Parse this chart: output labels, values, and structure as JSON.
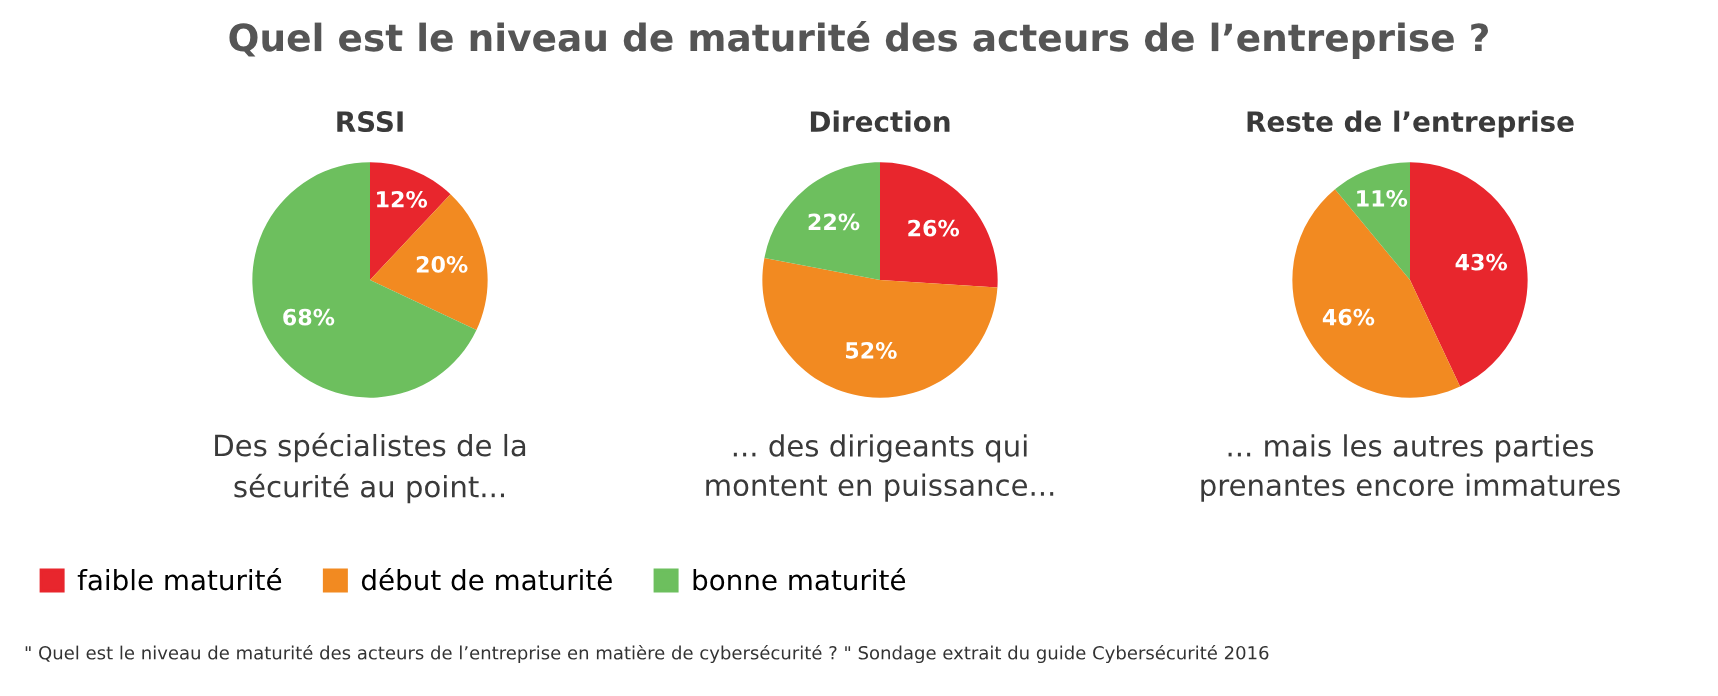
{
  "chart_data": [
    {
      "type": "pie",
      "title": "RSSI",
      "categories": [
        "faible maturité",
        "début de maturité",
        "bonne maturité"
      ],
      "values": [
        12,
        20,
        68
      ],
      "value_labels": [
        "12%",
        "20%",
        "68%"
      ],
      "colors": [
        "#e8262d",
        "#f28a21",
        "#6dbf5e"
      ],
      "legend": "bottom",
      "annotations": [
        "Des spécialistes de la\nsécurité au point...",
        "Quel est le niveau de maturité des acteurs de l’entreprise ?",
        "\" Quel est le niveau de maturité des acteurs de l’entreprise en matière de cybersécurité ? \" Sondage extrait du guide Cybersécurité 2016"
      ]
    },
    {
      "type": "pie",
      "title": "Direction",
      "categories": [
        null,
        null,
        null
      ],
      "values": [
        26,
        52,
        22
      ],
      "value_labels": [
        "26%",
        "52%",
        "22%"
      ],
      "colors": [
        "#e8262d",
        "#f28a21",
        "#6dbf5e"
      ],
      "annotations": [
        "... des dirigeants qui\nmontent en puissance..."
      ]
    },
    {
      "type": "pie",
      "title": "Reste de l’entreprise",
      "categories": [
        null,
        null,
        null
      ],
      "values": [
        43,
        46,
        11
      ],
      "value_labels": [
        "43%",
        "46%",
        "11%"
      ],
      "colors": [
        "#e8262d",
        "#f28a21",
        "#6dbf5e"
      ],
      "annotations": [
        "... mais les autres parties\nprenantes encore immatures"
      ]
    }
  ]
}
